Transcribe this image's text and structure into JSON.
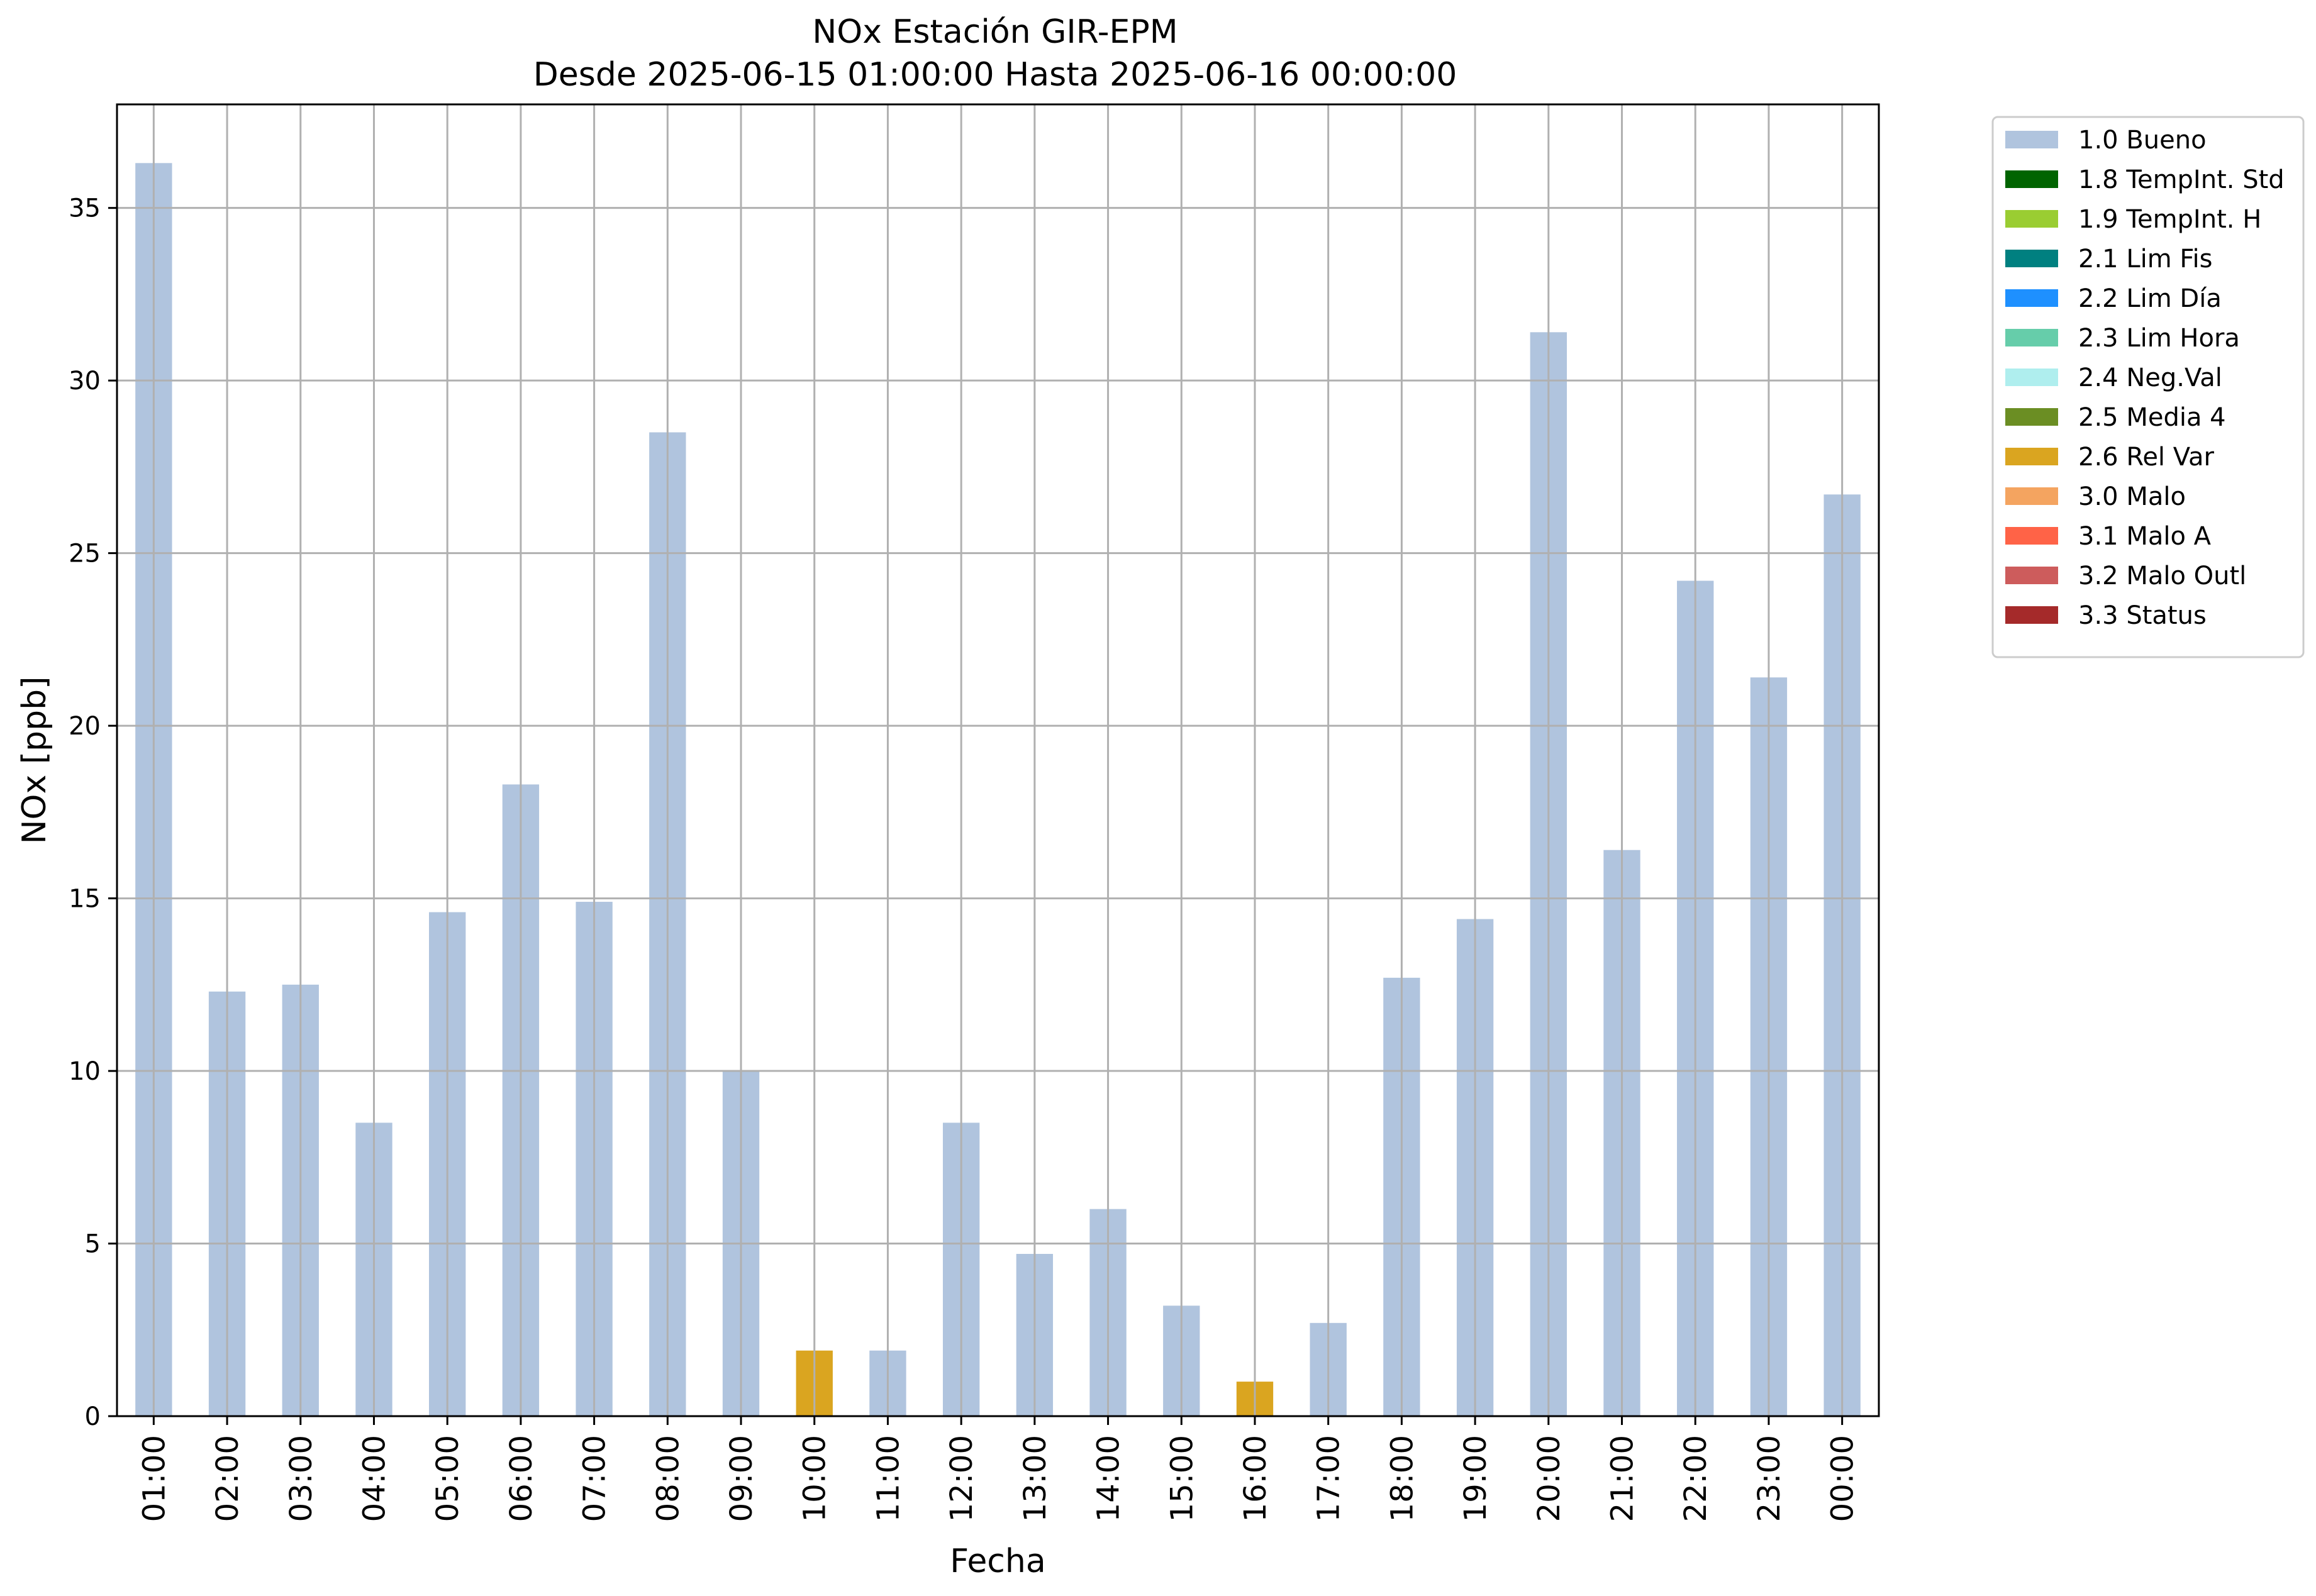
{
  "chart_data": {
    "type": "bar",
    "title": "NOx Estación GIR-EPM",
    "subtitle": "Desde 2025-06-15 01:00:00 Hasta 2025-06-16 00:00:00",
    "xlabel": "Fecha",
    "ylabel": "NOx [ppb]",
    "ylim": [
      0,
      38
    ],
    "yticks": [
      0,
      5,
      10,
      15,
      20,
      25,
      30,
      35
    ],
    "grid": true,
    "legend_position": "outside-top-right",
    "categories": [
      "01:00",
      "02:00",
      "03:00",
      "04:00",
      "05:00",
      "06:00",
      "07:00",
      "08:00",
      "09:00",
      "10:00",
      "11:00",
      "12:00",
      "13:00",
      "14:00",
      "15:00",
      "16:00",
      "17:00",
      "18:00",
      "19:00",
      "20:00",
      "21:00",
      "22:00",
      "23:00",
      "00:00"
    ],
    "values": [
      36.3,
      12.3,
      12.5,
      8.5,
      14.6,
      18.3,
      14.9,
      28.5,
      10.0,
      1.9,
      1.9,
      8.5,
      4.7,
      6.0,
      3.2,
      1.0,
      2.7,
      12.7,
      14.4,
      31.4,
      16.4,
      24.2,
      21.4,
      26.7
    ],
    "flags": [
      "1.0 Bueno",
      "1.0 Bueno",
      "1.0 Bueno",
      "1.0 Bueno",
      "1.0 Bueno",
      "1.0 Bueno",
      "1.0 Bueno",
      "1.0 Bueno",
      "1.0 Bueno",
      "2.6 Rel Var",
      "1.0 Bueno",
      "1.0 Bueno",
      "1.0 Bueno",
      "1.0 Bueno",
      "1.0 Bueno",
      "2.6 Rel Var",
      "1.0 Bueno",
      "1.0 Bueno",
      "1.0 Bueno",
      "1.0 Bueno",
      "1.0 Bueno",
      "1.0 Bueno",
      "1.0 Bueno",
      "1.0 Bueno"
    ],
    "legend": [
      {
        "label": "1.0 Bueno",
        "color": "#b0c4de"
      },
      {
        "label": "1.8 TempInt. Std",
        "color": "#006400"
      },
      {
        "label": "1.9 TempInt. H",
        "color": "#9acd32"
      },
      {
        "label": "2.1 Lim Fis",
        "color": "#008080"
      },
      {
        "label": "2.2 Lim Día",
        "color": "#1e90ff"
      },
      {
        "label": "2.3 Lim Hora",
        "color": "#66cdaa"
      },
      {
        "label": "2.4 Neg.Val",
        "color": "#afeeee"
      },
      {
        "label": "2.5 Media 4",
        "color": "#6b8e23"
      },
      {
        "label": "2.6 Rel Var",
        "color": "#daa520"
      },
      {
        "label": "3.0 Malo",
        "color": "#f4a460"
      },
      {
        "label": "3.1 Malo A",
        "color": "#ff6347"
      },
      {
        "label": "3.2 Malo Outl",
        "color": "#cd5c5c"
      },
      {
        "label": "3.3 Status",
        "color": "#a52a2a"
      }
    ]
  }
}
